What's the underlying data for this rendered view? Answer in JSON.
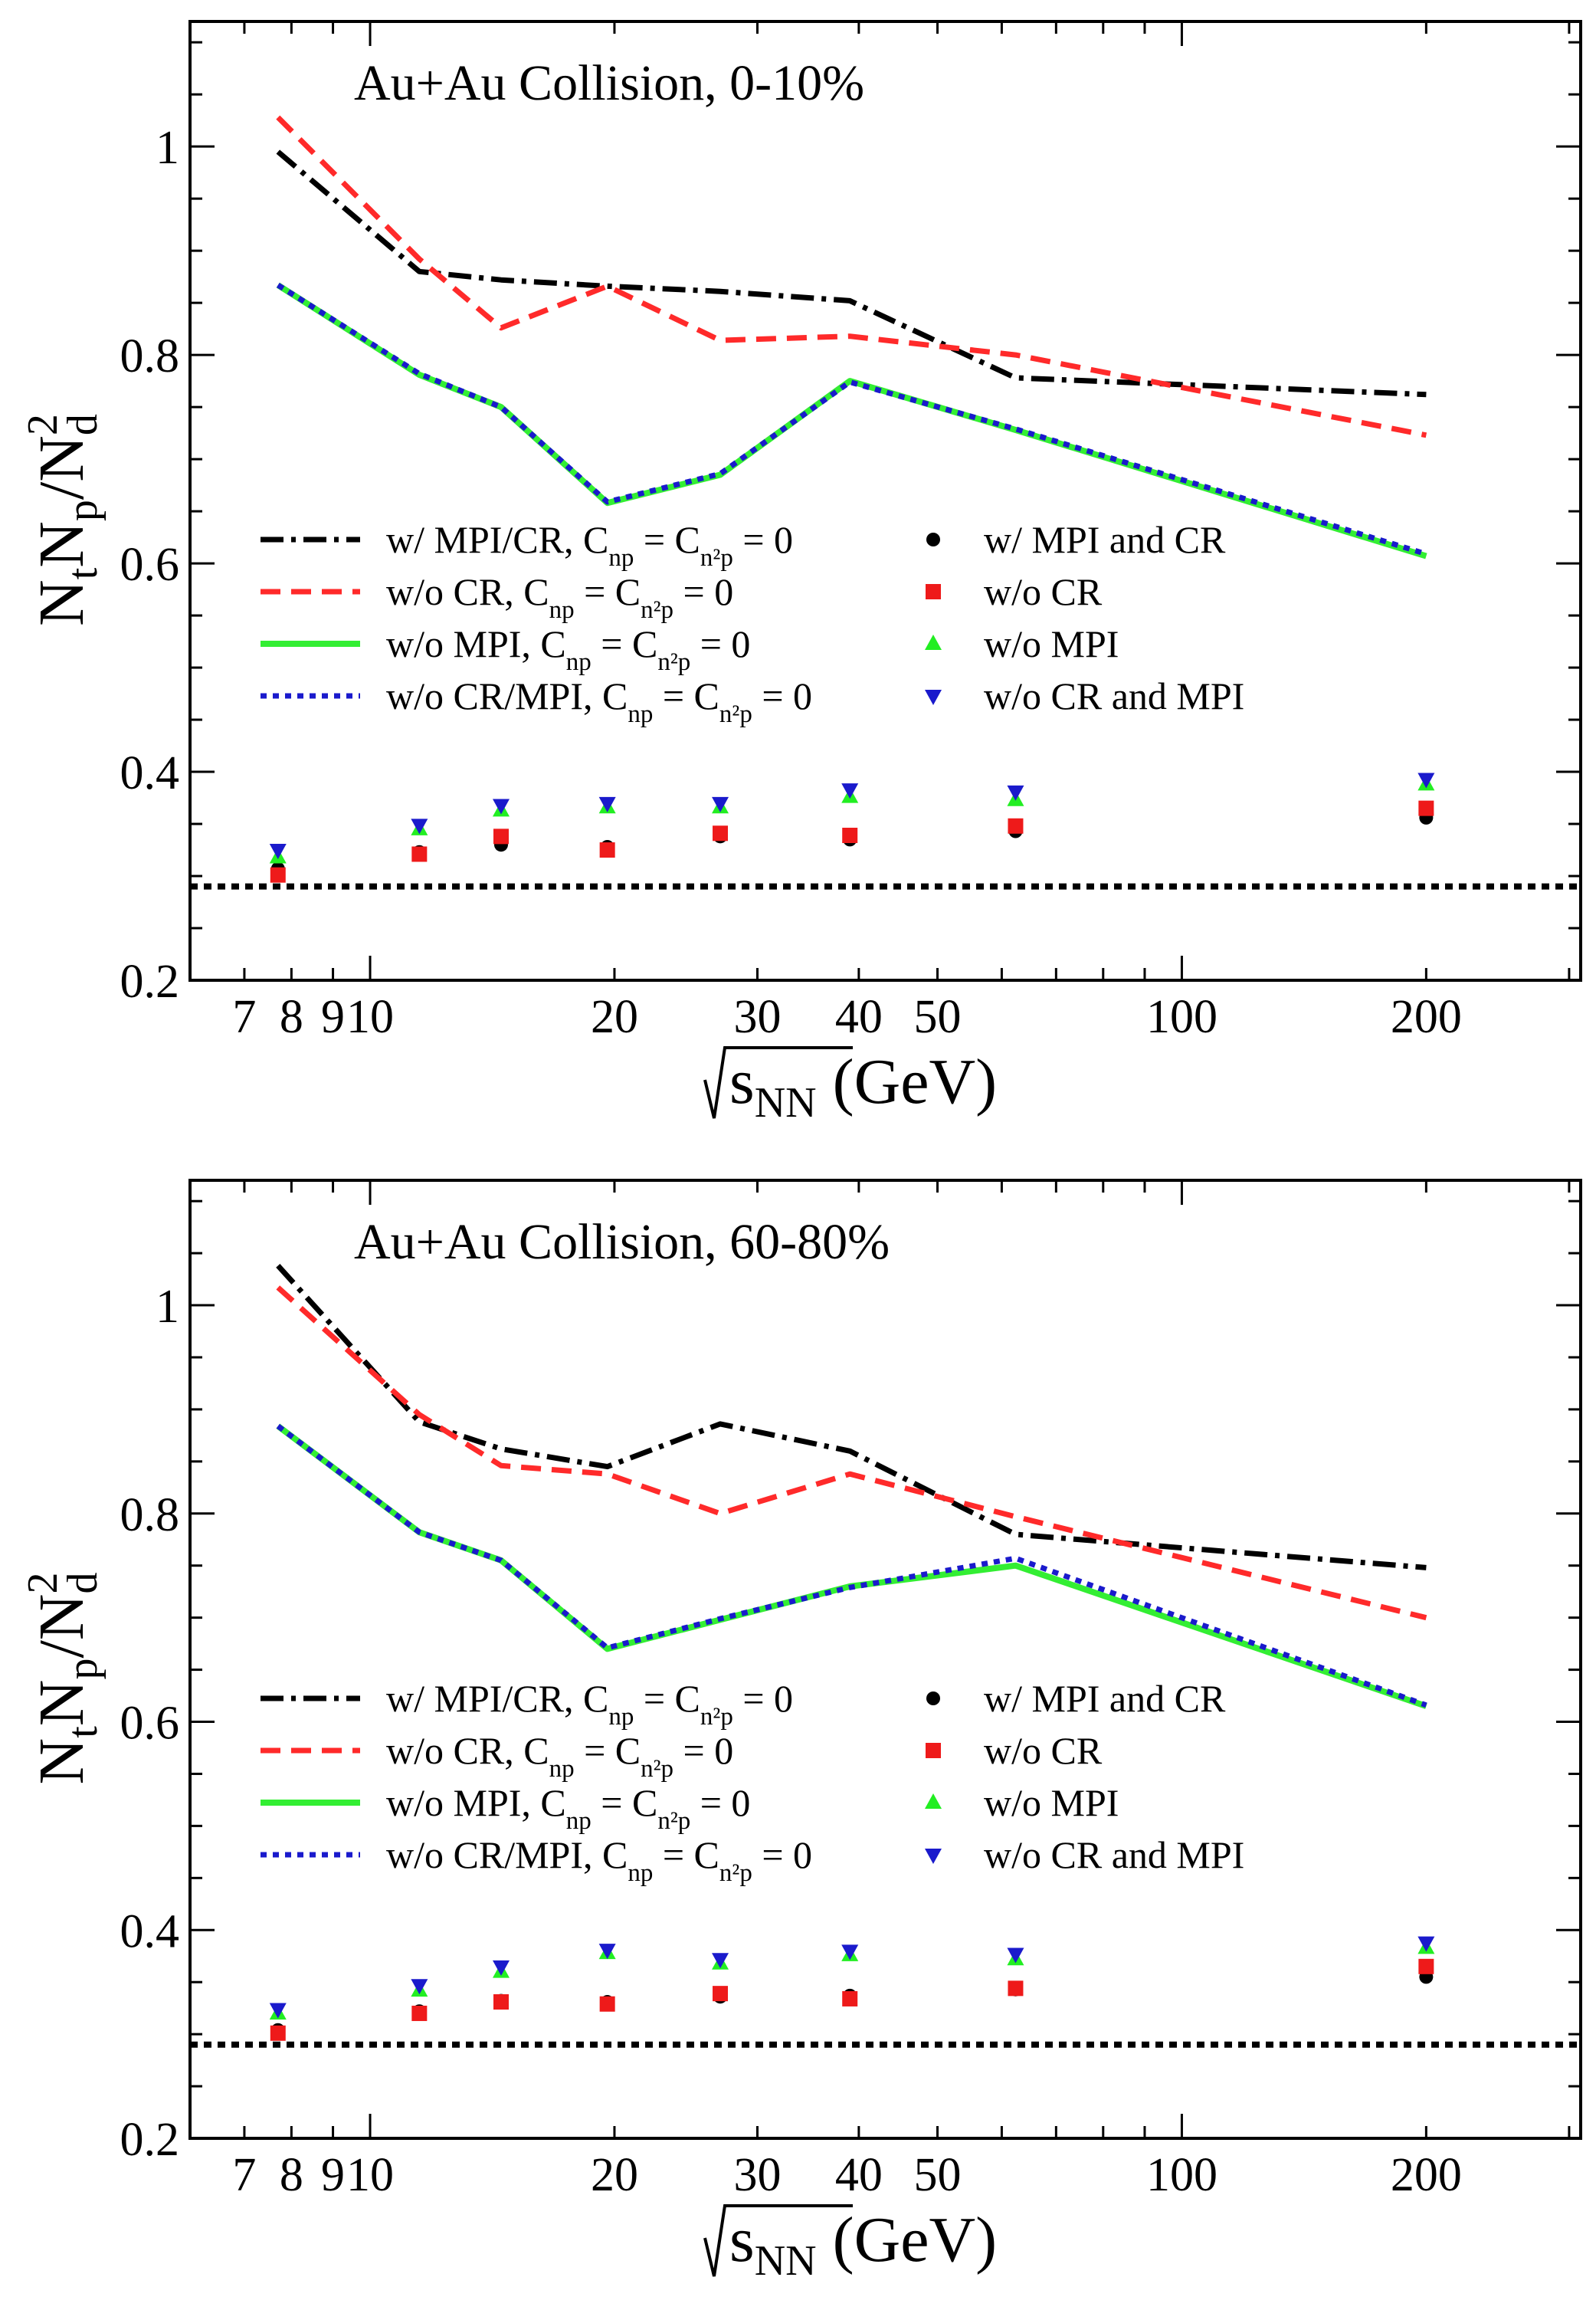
{
  "chart_data": [
    {
      "type": "line",
      "title": "Au+Au Collision, 0-10%",
      "xlabel": {
        "root": "s",
        "sub": "NN",
        "unit": "(GeV)"
      },
      "ylabel": {
        "a": "N",
        "a_sub": "t",
        "b": "N",
        "b_sub": "p",
        "c": "/N",
        "c_sub": "d",
        "c_sup": "2"
      },
      "xscale": "log",
      "xlim": [
        6,
        310
      ],
      "ylim": [
        0.2,
        1.12
      ],
      "xticks_labeled": [
        {
          "v": 7,
          "t": "7"
        },
        {
          "v": 8,
          "t": "8"
        },
        {
          "v": 9,
          "t": "9"
        },
        {
          "v": 10,
          "t": "10"
        },
        {
          "v": 20,
          "t": "20"
        },
        {
          "v": 30,
          "t": "30"
        },
        {
          "v": 40,
          "t": "40"
        },
        {
          "v": 50,
          "t": "50"
        },
        {
          "v": 100,
          "t": "100"
        },
        {
          "v": 200,
          "t": "200"
        }
      ],
      "yticks": [
        {
          "v": 0.2,
          "t": "0.2"
        },
        {
          "v": 0.4,
          "t": "0.4"
        },
        {
          "v": 0.6,
          "t": "0.6"
        },
        {
          "v": 0.8,
          "t": "0.8"
        },
        {
          "v": 1,
          "t": "1"
        }
      ],
      "x": [
        7.7,
        11.5,
        14.5,
        19.6,
        27,
        39,
        62.4,
        200
      ],
      "series": [
        {
          "name": "w/ MPI/CR, C_np = C_n2p = 0",
          "style": "dashdot",
          "color": "#000000",
          "values": [
            0.995,
            0.88,
            0.872,
            0.866,
            0.861,
            0.852,
            0.778,
            0.762
          ]
        },
        {
          "name": "w/o CR, C_np = C_n2p = 0",
          "style": "dashed",
          "color": "#ff2a2a",
          "values": [
            1.028,
            0.892,
            0.826,
            0.866,
            0.814,
            0.818,
            0.8,
            0.723
          ]
        },
        {
          "name": "w/o MPI, C_np = C_n2p = 0",
          "style": "solid",
          "color": "#33ee33",
          "values": [
            0.867,
            0.781,
            0.75,
            0.658,
            0.685,
            0.775,
            0.728,
            0.607
          ]
        },
        {
          "name": "w/o CR/MPI, C_np = C_n2p = 0",
          "style": "dotted",
          "color": "#1a1acc",
          "values": [
            0.867,
            0.782,
            0.75,
            0.659,
            0.686,
            0.774,
            0.729,
            0.609
          ]
        },
        {
          "name": "w/ MPI and CR",
          "style": "circle",
          "color": "#000000",
          "values": [
            0.307,
            0.323,
            0.33,
            0.328,
            0.338,
            0.335,
            0.343,
            0.356
          ]
        },
        {
          "name": "w/o CR",
          "style": "square",
          "color": "#ee1a1a",
          "values": [
            0.301,
            0.321,
            0.338,
            0.325,
            0.341,
            0.339,
            0.348,
            0.365
          ]
        },
        {
          "name": "w/o MPI",
          "style": "triangle-up",
          "color": "#22ee22",
          "values": [
            0.318,
            0.345,
            0.363,
            0.366,
            0.366,
            0.376,
            0.373,
            0.388
          ]
        },
        {
          "name": "w/o CR and MPI",
          "style": "triangle-down",
          "color": "#1a1acc",
          "values": [
            0.325,
            0.349,
            0.368,
            0.37,
            0.37,
            0.383,
            0.381,
            0.393
          ]
        }
      ],
      "reference_line": {
        "y": 0.29,
        "style": "dotted",
        "color": "#000000"
      },
      "legend": {
        "left": [
          {
            "style": "dashdot",
            "color": "#000000",
            "pre": "w/ MPI/CR, C",
            "s1": "np",
            "mid": " = C",
            "s2": "n²p",
            "post": " = 0"
          },
          {
            "style": "dashed",
            "color": "#ff2a2a",
            "pre": "w/o CR, C",
            "s1": "np",
            "mid": " = C",
            "s2": "n²p",
            "post": " = 0"
          },
          {
            "style": "solid",
            "color": "#33ee33",
            "pre": "w/o MPI, C",
            "s1": "np",
            "mid": " = C",
            "s2": "n²p",
            "post": " = 0"
          },
          {
            "style": "dotted",
            "color": "#1a1acc",
            "pre": "w/o CR/MPI, C",
            "s1": "np",
            "mid": " = C",
            "s2": "n²p",
            "post": " = 0"
          }
        ],
        "right": [
          {
            "style": "circle",
            "color": "#000000",
            "label": "w/ MPI and CR"
          },
          {
            "style": "square",
            "color": "#ee1a1a",
            "label": "w/o CR"
          },
          {
            "style": "triangle-up",
            "color": "#22ee22",
            "label": "w/o MPI"
          },
          {
            "style": "triangle-down",
            "color": "#1a1acc",
            "label": "w/o CR and MPI"
          }
        ]
      }
    },
    {
      "type": "line",
      "title": "Au+Au Collision, 60-80%",
      "xlabel": {
        "root": "s",
        "sub": "NN",
        "unit": "(GeV)"
      },
      "ylabel": {
        "a": "N",
        "a_sub": "t",
        "b": "N",
        "b_sub": "p",
        "c": "/N",
        "c_sub": "d",
        "c_sup": "2"
      },
      "xscale": "log",
      "xlim": [
        6,
        310
      ],
      "ylim": [
        0.2,
        1.12
      ],
      "xticks_labeled": [
        {
          "v": 7,
          "t": "7"
        },
        {
          "v": 8,
          "t": "8"
        },
        {
          "v": 9,
          "t": "9"
        },
        {
          "v": 10,
          "t": "10"
        },
        {
          "v": 20,
          "t": "20"
        },
        {
          "v": 30,
          "t": "30"
        },
        {
          "v": 40,
          "t": "40"
        },
        {
          "v": 50,
          "t": "50"
        },
        {
          "v": 100,
          "t": "100"
        },
        {
          "v": 200,
          "t": "200"
        }
      ],
      "yticks": [
        {
          "v": 0.2,
          "t": "0.2"
        },
        {
          "v": 0.4,
          "t": "0.4"
        },
        {
          "v": 0.6,
          "t": "0.6"
        },
        {
          "v": 0.8,
          "t": "0.8"
        },
        {
          "v": 1,
          "t": "1"
        }
      ],
      "x": [
        7.7,
        11.5,
        14.5,
        19.6,
        27,
        39,
        62.4,
        200
      ],
      "series": [
        {
          "name": "w/ MPI/CR, C_np = C_n2p = 0",
          "style": "dashdot",
          "color": "#000000",
          "values": [
            1.038,
            0.888,
            0.862,
            0.845,
            0.886,
            0.86,
            0.78,
            0.748
          ]
        },
        {
          "name": "w/o CR, C_np = C_n2p = 0",
          "style": "dashed",
          "color": "#ff2a2a",
          "values": [
            1.017,
            0.895,
            0.846,
            0.838,
            0.8,
            0.838,
            0.797,
            0.7
          ]
        },
        {
          "name": "w/o MPI, C_np = C_n2p = 0",
          "style": "solid",
          "color": "#33ee33",
          "values": [
            0.884,
            0.782,
            0.755,
            0.67,
            0.698,
            0.73,
            0.75,
            0.615
          ]
        },
        {
          "name": "w/o CR/MPI, C_np = C_n2p = 0",
          "style": "dotted",
          "color": "#1a1acc",
          "values": [
            0.884,
            0.782,
            0.755,
            0.671,
            0.699,
            0.729,
            0.757,
            0.616
          ]
        },
        {
          "name": "w/ MPI and CR",
          "style": "circle",
          "color": "#000000",
          "values": [
            0.304,
            0.322,
            0.332,
            0.331,
            0.336,
            0.337,
            0.343,
            0.355
          ]
        },
        {
          "name": "w/o CR",
          "style": "square",
          "color": "#ee1a1a",
          "values": [
            0.301,
            0.32,
            0.331,
            0.329,
            0.339,
            0.334,
            0.344,
            0.365
          ]
        },
        {
          "name": "w/o MPI",
          "style": "triangle-up",
          "color": "#22ee22",
          "values": [
            0.32,
            0.342,
            0.36,
            0.378,
            0.368,
            0.376,
            0.372,
            0.383
          ]
        },
        {
          "name": "w/o CR and MPI",
          "style": "triangle-down",
          "color": "#1a1acc",
          "values": [
            0.324,
            0.347,
            0.365,
            0.381,
            0.372,
            0.38,
            0.377,
            0.388
          ]
        }
      ],
      "reference_line": {
        "y": 0.29,
        "style": "dotted",
        "color": "#000000"
      },
      "legend": {
        "left": [
          {
            "style": "dashdot",
            "color": "#000000",
            "pre": "w/ MPI/CR, C",
            "s1": "np",
            "mid": " = C",
            "s2": "n²p",
            "post": " = 0"
          },
          {
            "style": "dashed",
            "color": "#ff2a2a",
            "pre": "w/o CR, C",
            "s1": "np",
            "mid": " = C",
            "s2": "n²p",
            "post": " = 0"
          },
          {
            "style": "solid",
            "color": "#33ee33",
            "pre": "w/o MPI, C",
            "s1": "np",
            "mid": " = C",
            "s2": "n²p",
            "post": " = 0"
          },
          {
            "style": "dotted",
            "color": "#1a1acc",
            "pre": "w/o CR/MPI, C",
            "s1": "np",
            "mid": " = C",
            "s2": "n²p",
            "post": " = 0"
          }
        ],
        "right": [
          {
            "style": "circle",
            "color": "#000000",
            "label": "w/ MPI and CR"
          },
          {
            "style": "square",
            "color": "#ee1a1a",
            "label": "w/o CR"
          },
          {
            "style": "triangle-up",
            "color": "#22ee22",
            "label": "w/o MPI"
          },
          {
            "style": "triangle-down",
            "color": "#1a1acc",
            "label": "w/o CR and MPI"
          }
        ]
      }
    }
  ]
}
